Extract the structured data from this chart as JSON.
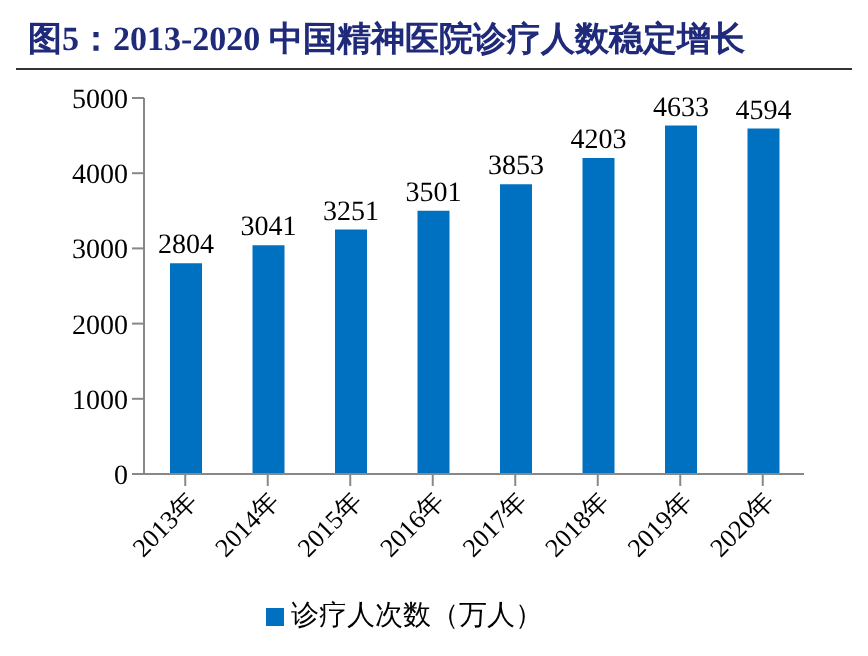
{
  "chart_data": {
    "type": "bar",
    "title": "图5：2013-2020 中国精神医院诊疗人数稳定增长",
    "categories": [
      "2013年",
      "2014年",
      "2015年",
      "2016年",
      "2017年",
      "2018年",
      "2019年",
      "2020年"
    ],
    "series": [
      {
        "name": "诊疗人次数（万人）",
        "color": "#0070c0",
        "values": [
          2804,
          3041,
          3251,
          3501,
          3853,
          4203,
          4633,
          4594
        ]
      }
    ],
    "ylim": [
      0,
      5000
    ],
    "yticks": [
      0,
      1000,
      2000,
      3000,
      4000,
      5000
    ],
    "data_labels": true,
    "legend": "bottom",
    "grid": false
  }
}
